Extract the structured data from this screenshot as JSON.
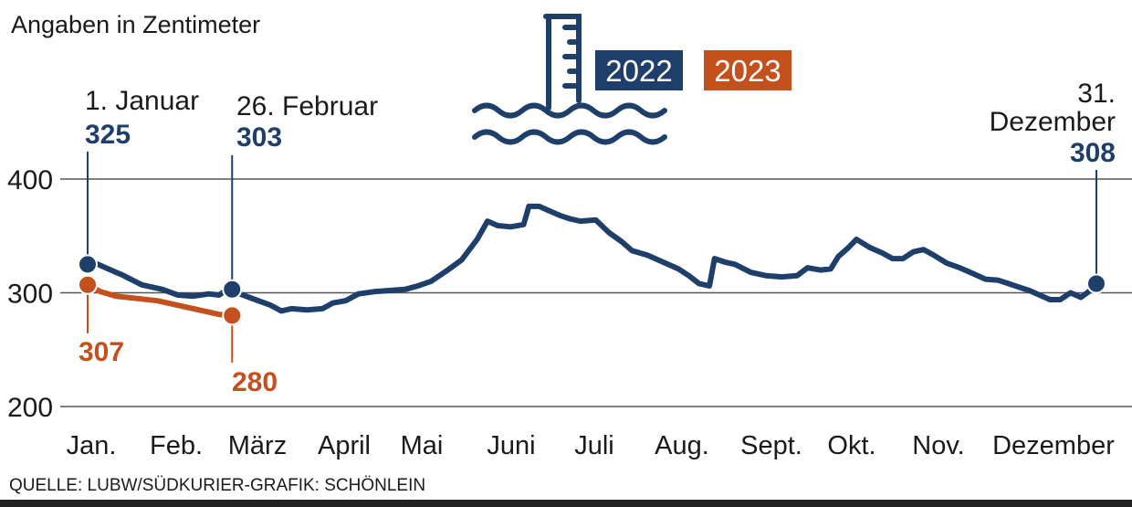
{
  "chart_data": {
    "type": "line",
    "subtitle": "Angaben in Zentimeter",
    "source": "QUELLE: LUBW/SÜDKURIER-GRAFIK: SCHÖNLEIN",
    "ylim": [
      200,
      400
    ],
    "yticks": [
      200,
      300,
      400
    ],
    "grid": true,
    "x_unit": "day_of_year",
    "month_labels": [
      "Jan.",
      "Feb.",
      "März",
      "April",
      "Mai",
      "Juni",
      "Juli",
      "Aug.",
      "Sept.",
      "Okt.",
      "Nov.",
      "Dezember"
    ],
    "legend": {
      "position": "top-center",
      "entries": [
        "2022",
        "2023"
      ]
    },
    "colors": {
      "2022": "#1f3f6b",
      "2023": "#c4501e",
      "grid": "#555555",
      "text": "#1a1a1a"
    },
    "series": [
      {
        "name": "2022",
        "points": [
          [
            1,
            325
          ],
          [
            3,
            327
          ],
          [
            8,
            322
          ],
          [
            15,
            315
          ],
          [
            22,
            307
          ],
          [
            30,
            303
          ],
          [
            36,
            298
          ],
          [
            42,
            297
          ],
          [
            48,
            299
          ],
          [
            52,
            298
          ],
          [
            55,
            303
          ],
          [
            57,
            303
          ],
          [
            60,
            299
          ],
          [
            66,
            294
          ],
          [
            72,
            289
          ],
          [
            76,
            284
          ],
          [
            80,
            286
          ],
          [
            86,
            285
          ],
          [
            92,
            286
          ],
          [
            96,
            291
          ],
          [
            101,
            293
          ],
          [
            106,
            299
          ],
          [
            112,
            301
          ],
          [
            118,
            302
          ],
          [
            124,
            303
          ],
          [
            129,
            306
          ],
          [
            134,
            310
          ],
          [
            140,
            319
          ],
          [
            146,
            329
          ],
          [
            152,
            347
          ],
          [
            156,
            363
          ],
          [
            160,
            359
          ],
          [
            165,
            358
          ],
          [
            170,
            360
          ],
          [
            172,
            376
          ],
          [
            176,
            376
          ],
          [
            180,
            372
          ],
          [
            184,
            368
          ],
          [
            188,
            365
          ],
          [
            192,
            363
          ],
          [
            198,
            364
          ],
          [
            203,
            353
          ],
          [
            208,
            345
          ],
          [
            212,
            337
          ],
          [
            218,
            333
          ],
          [
            224,
            327
          ],
          [
            230,
            321
          ],
          [
            234,
            315
          ],
          [
            238,
            308
          ],
          [
            242,
            306
          ],
          [
            244,
            330
          ],
          [
            248,
            327
          ],
          [
            252,
            325
          ],
          [
            258,
            318
          ],
          [
            264,
            315
          ],
          [
            270,
            314
          ],
          [
            276,
            315
          ],
          [
            280,
            322
          ],
          [
            285,
            320
          ],
          [
            289,
            321
          ],
          [
            292,
            332
          ],
          [
            296,
            340
          ],
          [
            299,
            347
          ],
          [
            304,
            340
          ],
          [
            309,
            335
          ],
          [
            313,
            330
          ],
          [
            317,
            330
          ],
          [
            321,
            336
          ],
          [
            325,
            338
          ],
          [
            329,
            333
          ],
          [
            334,
            326
          ],
          [
            339,
            322
          ],
          [
            344,
            317
          ],
          [
            349,
            312
          ],
          [
            354,
            311
          ],
          [
            358,
            308
          ],
          [
            362,
            305
          ],
          [
            366,
            302
          ],
          [
            370,
            298
          ],
          [
            374,
            294
          ],
          [
            378,
            294
          ],
          [
            382,
            300
          ],
          [
            386,
            296
          ],
          [
            389,
            301
          ],
          [
            392,
            308
          ]
        ]
      },
      {
        "name": "2023",
        "points": [
          [
            1,
            307
          ],
          [
            6,
            301
          ],
          [
            12,
            297
          ],
          [
            20,
            295
          ],
          [
            28,
            293
          ],
          [
            36,
            289
          ],
          [
            44,
            285
          ],
          [
            52,
            281
          ],
          [
            57,
            280
          ]
        ]
      }
    ],
    "annotations": [
      {
        "series": "2022",
        "date": "1. Januar",
        "value": "325",
        "x": 1,
        "y": 325
      },
      {
        "series": "2022",
        "date": "26. Februar",
        "value": "303",
        "x": 57,
        "y": 303
      },
      {
        "series": "2022",
        "date_lines": [
          "31.",
          "Dezember"
        ],
        "value": "308",
        "x": 392,
        "y": 308
      },
      {
        "series": "2023",
        "value": "307",
        "x": 1,
        "y": 307
      },
      {
        "series": "2023",
        "value": "280",
        "x": 57,
        "y": 280
      }
    ]
  }
}
